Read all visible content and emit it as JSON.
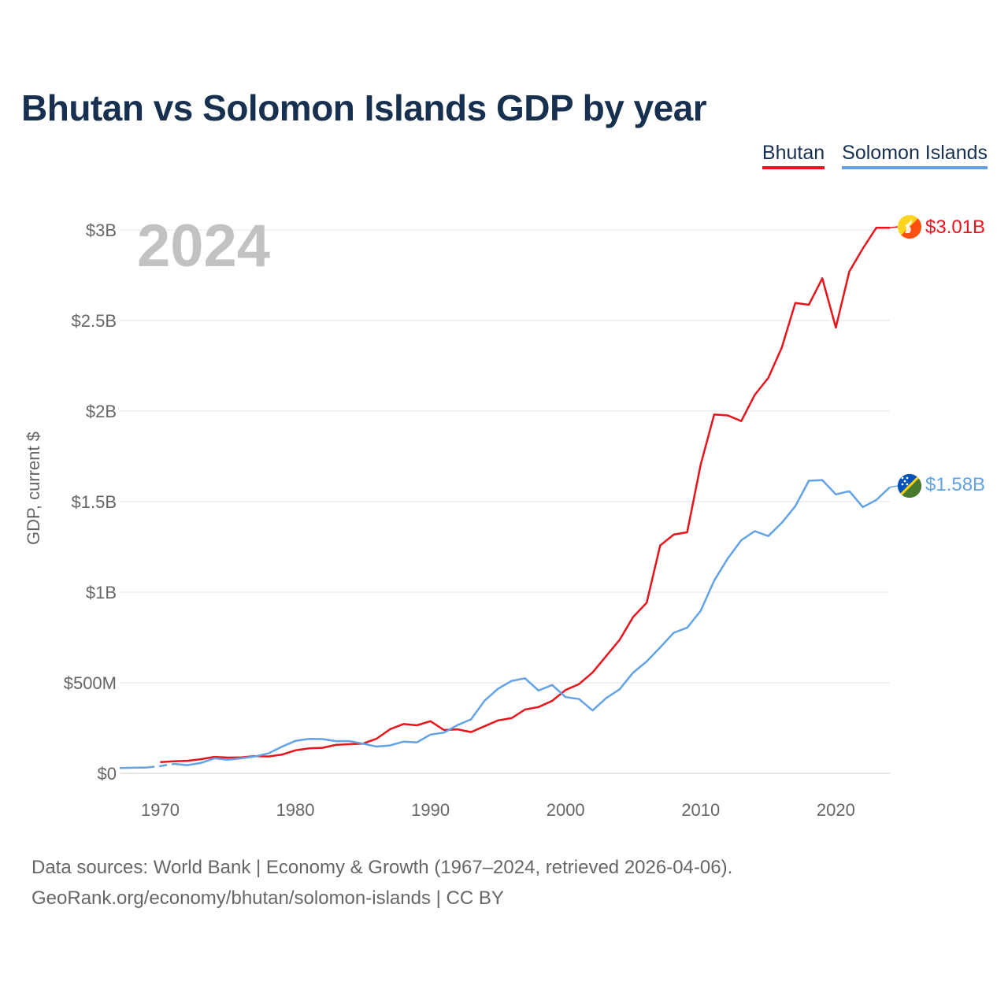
{
  "chart_data": {
    "type": "line",
    "title": "Bhutan vs Solomon Islands GDP by year",
    "ylabel": "GDP, current $",
    "xlabel": "",
    "current_year_label": "2024",
    "xlim": [
      1967,
      2024
    ],
    "ylim": [
      0,
      3000000000
    ],
    "x_ticks": [
      {
        "value": 1970,
        "label": "1970"
      },
      {
        "value": 1980,
        "label": "1980"
      },
      {
        "value": 1990,
        "label": "1990"
      },
      {
        "value": 2000,
        "label": "2000"
      },
      {
        "value": 2010,
        "label": "2010"
      },
      {
        "value": 2020,
        "label": "2020"
      }
    ],
    "y_ticks": [
      {
        "value": 0,
        "label": "$0"
      },
      {
        "value": 500000000,
        "label": "$500M"
      },
      {
        "value": 1000000000,
        "label": "$1B"
      },
      {
        "value": 1500000000,
        "label": "$1.5B"
      },
      {
        "value": 2000000000,
        "label": "$2B"
      },
      {
        "value": 2500000000,
        "label": "$2.5B"
      },
      {
        "value": 3000000000,
        "label": "$3B"
      }
    ],
    "grid": true,
    "legend_position": "top-right",
    "series": [
      {
        "name": "Bhutan",
        "color": "#e8131b",
        "flag_icon": "bhutan-flag-icon",
        "end_label": "$3.01B",
        "x": [
          1970,
          1971,
          1972,
          1973,
          1974,
          1975,
          1976,
          1977,
          1978,
          1979,
          1980,
          1981,
          1982,
          1983,
          1984,
          1985,
          1986,
          1987,
          1988,
          1989,
          1990,
          1991,
          1992,
          1993,
          1994,
          1995,
          1996,
          1997,
          1998,
          1999,
          2000,
          2001,
          2002,
          2003,
          2004,
          2005,
          2006,
          2007,
          2008,
          2009,
          2010,
          2011,
          2012,
          2013,
          2014,
          2015,
          2016,
          2017,
          2018,
          2019,
          2020,
          2021,
          2022,
          2023,
          2024
        ],
        "values": [
          62000000,
          66000000,
          69000000,
          78000000,
          91000000,
          87000000,
          88000000,
          95000000,
          93000000,
          103000000,
          127000000,
          138000000,
          141000000,
          157000000,
          161000000,
          164000000,
          191000000,
          243000000,
          272000000,
          265000000,
          288000000,
          239000000,
          243000000,
          228000000,
          260000000,
          292000000,
          305000000,
          352000000,
          366000000,
          400000000,
          460000000,
          493000000,
          557000000,
          647000000,
          737000000,
          863000000,
          942000000,
          1258000000,
          1318000000,
          1331000000,
          1705000000,
          1981000000,
          1976000000,
          1945000000,
          2089000000,
          2183000000,
          2350000000,
          2597000000,
          2587000000,
          2733000000,
          2461000000,
          2771000000,
          2898000000,
          3012000000,
          3012000000
        ]
      },
      {
        "name": "Solomon Islands",
        "color": "#62a2e6",
        "flag_icon": "solomon-islands-flag-icon",
        "end_label": "$1.58B",
        "dashed_segment": [
          1969,
          1971
        ],
        "x": [
          1967,
          1968,
          1969,
          1970,
          1971,
          1972,
          1973,
          1974,
          1975,
          1976,
          1977,
          1978,
          1979,
          1980,
          1981,
          1982,
          1983,
          1984,
          1985,
          1986,
          1987,
          1988,
          1989,
          1990,
          1991,
          1992,
          1993,
          1994,
          1995,
          1996,
          1997,
          1998,
          1999,
          2000,
          2001,
          2002,
          2003,
          2004,
          2005,
          2006,
          2007,
          2008,
          2009,
          2010,
          2011,
          2012,
          2013,
          2014,
          2015,
          2016,
          2017,
          2018,
          2019,
          2020,
          2021,
          2022,
          2023,
          2024
        ],
        "values": [
          29000000,
          31000000,
          32000000,
          40000000,
          52000000,
          45000000,
          57000000,
          83000000,
          75000000,
          83000000,
          93000000,
          110000000,
          147000000,
          179000000,
          190000000,
          189000000,
          178000000,
          178000000,
          164000000,
          148000000,
          154000000,
          175000000,
          171000000,
          214000000,
          225000000,
          266000000,
          298000000,
          401000000,
          467000000,
          510000000,
          525000000,
          457000000,
          488000000,
          421000000,
          410000000,
          347000000,
          415000000,
          464000000,
          556000000,
          618000000,
          695000000,
          776000000,
          804000000,
          898000000,
          1064000000,
          1186000000,
          1287000000,
          1337000000,
          1310000000,
          1383000000,
          1475000000,
          1615000000,
          1619000000,
          1540000000,
          1558000000,
          1470000000,
          1509000000,
          1580000000
        ]
      }
    ]
  },
  "footer": {
    "line1": "Data sources: World Bank | Economy & Growth (1967–2024, retrieved 2026-04-06).",
    "line2": "GeoRank.org/economy/bhutan/solomon-islands | CC BY"
  }
}
